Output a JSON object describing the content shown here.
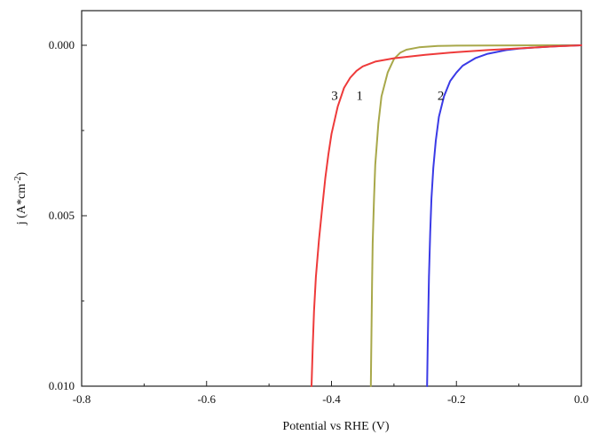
{
  "chart_data": {
    "type": "line",
    "xlabel": "Potential vs RHE (V)",
    "ylabel": "j (A*cm",
    "ylabel_sup": "-2",
    "ylabel_close": ")",
    "xlim": [
      -0.8,
      0.0
    ],
    "ylim": [
      0.0,
      0.01
    ],
    "y_inverted": true,
    "x_ticks": [
      -0.8,
      -0.6,
      -0.4,
      -0.2,
      0.0
    ],
    "x_tick_labels": [
      "-0.8",
      "-0.6",
      "-0.4",
      "-0.2",
      "0.0"
    ],
    "y_ticks": [
      0.0,
      0.005,
      0.01
    ],
    "y_tick_labels": [
      "0.000",
      "0.005",
      "0.010"
    ],
    "grid": false,
    "series": [
      {
        "name": "1",
        "color": "#a8a84a",
        "x": [
          -0.337,
          -0.336,
          -0.335,
          -0.334,
          -0.332,
          -0.33,
          -0.325,
          -0.32,
          -0.31,
          -0.3,
          -0.29,
          -0.28,
          -0.26,
          -0.23,
          -0.2,
          -0.15,
          -0.1,
          -0.05,
          0.0
        ],
        "y": [
          0.01,
          0.0085,
          0.007,
          0.0058,
          0.0045,
          0.0035,
          0.0023,
          0.0015,
          0.0008,
          0.0004,
          0.00022,
          0.00013,
          6e-05,
          2e-05,
          1e-05,
          5e-06,
          2e-06,
          1e-06,
          0.0
        ]
      },
      {
        "name": "2",
        "color": "#3a3ae6",
        "x": [
          -0.247,
          -0.246,
          -0.245,
          -0.244,
          -0.242,
          -0.24,
          -0.237,
          -0.233,
          -0.228,
          -0.22,
          -0.21,
          -0.2,
          -0.19,
          -0.17,
          -0.15,
          -0.12,
          -0.1,
          -0.08,
          -0.05,
          -0.03,
          0.0
        ],
        "y": [
          0.01,
          0.0088,
          0.0078,
          0.0068,
          0.0055,
          0.0045,
          0.0036,
          0.0028,
          0.0021,
          0.0015,
          0.00105,
          0.0008,
          0.0006,
          0.00038,
          0.00025,
          0.00014,
          0.0001,
          7e-05,
          4e-05,
          2e-05,
          0.0
        ]
      },
      {
        "name": "3",
        "color": "#ee3a3a",
        "x": [
          -0.432,
          -0.43,
          -0.428,
          -0.425,
          -0.42,
          -0.415,
          -0.41,
          -0.405,
          -0.4,
          -0.39,
          -0.38,
          -0.37,
          -0.36,
          -0.35,
          -0.33,
          -0.3,
          -0.25,
          -0.2,
          -0.15,
          -0.1,
          -0.05,
          0.0
        ],
        "y": [
          0.01,
          0.0088,
          0.0078,
          0.0068,
          0.0057,
          0.0048,
          0.0039,
          0.0032,
          0.0026,
          0.0018,
          0.00125,
          0.00095,
          0.00075,
          0.00062,
          0.00048,
          0.00038,
          0.00028,
          0.0002,
          0.00014,
          9e-05,
          4e-05,
          0.0
        ]
      }
    ],
    "annotations": [
      {
        "text": "3",
        "x": -0.395,
        "y": 0.0016
      },
      {
        "text": "1",
        "x": -0.355,
        "y": 0.0016
      },
      {
        "text": "2",
        "x": -0.225,
        "y": 0.0016
      }
    ]
  }
}
